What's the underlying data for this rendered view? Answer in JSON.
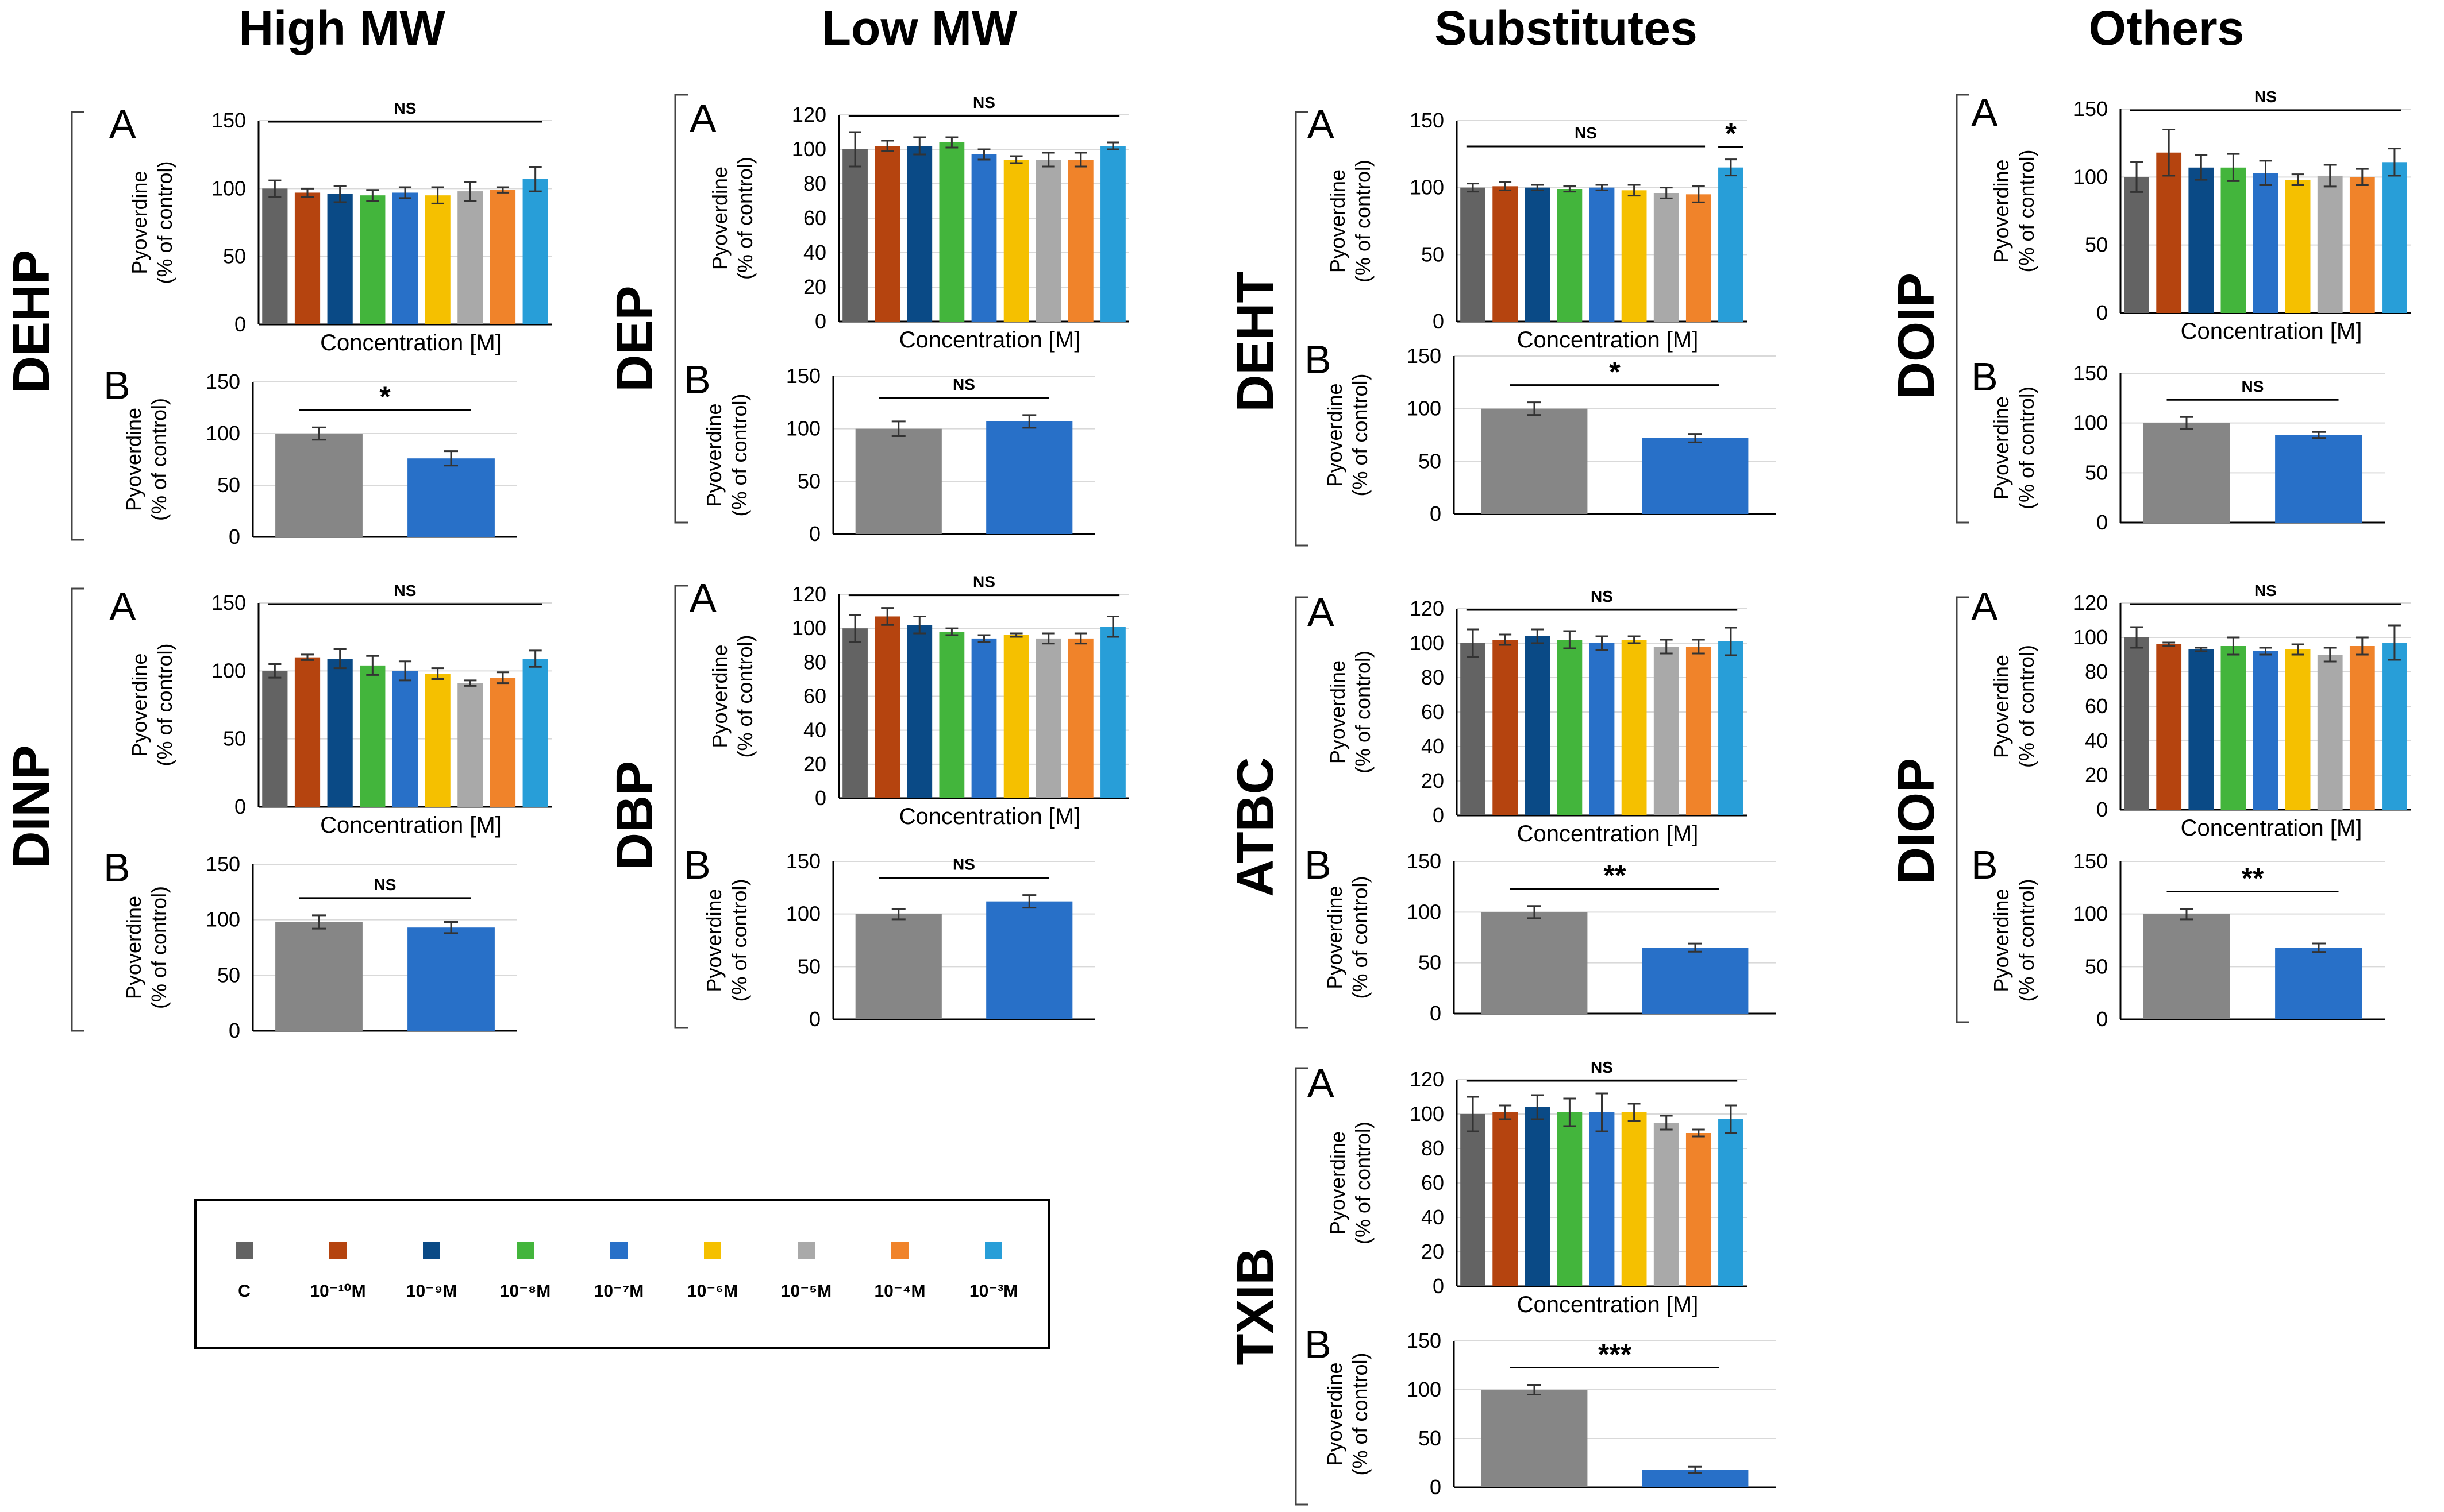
{
  "figure": {
    "axis": {
      "ylabel_line1": "Pyoverdine",
      "ylabel_line2": "(% of control)",
      "xlabel": "Concentration [M]"
    },
    "legend": {
      "items": [
        {
          "label": "C",
          "color": "#636363"
        },
        {
          "label": "10⁻¹⁰M",
          "color": "#b5440f"
        },
        {
          "label": "10⁻⁹M",
          "color": "#0a4a86"
        },
        {
          "label": "10⁻⁸M",
          "color": "#43b53c"
        },
        {
          "label": "10⁻⁷M",
          "color": "#2870c8"
        },
        {
          "label": "10⁻⁶M",
          "color": "#f5c000"
        },
        {
          "label": "10⁻⁵M",
          "color": "#a9a9a9"
        },
        {
          "label": "10⁻⁴M",
          "color": "#f0832a"
        },
        {
          "label": "10⁻³M",
          "color": "#289ed8"
        }
      ]
    },
    "panelB_colors": {
      "control": "#868686",
      "treated": "#2870c8"
    }
  },
  "chart_data": [
    {
      "compound": "DEHP",
      "group": "High MW",
      "panels": [
        {
          "label": "A",
          "type": "bar",
          "ylim": [
            0,
            150
          ],
          "ticks": [
            0,
            50,
            100,
            150
          ],
          "xlabel": "Concentration [M]",
          "values": [
            100,
            97,
            96,
            95,
            97,
            95,
            98,
            99,
            107
          ],
          "errors": [
            6,
            3,
            6,
            4,
            4,
            6,
            7,
            2,
            9
          ],
          "sig": [
            {
              "text": "NS",
              "from": 0,
              "to": 8
            }
          ]
        },
        {
          "label": "B",
          "type": "bar",
          "ylim": [
            0,
            150
          ],
          "ticks": [
            0,
            50,
            100,
            150
          ],
          "values": [
            100,
            76
          ],
          "errors": [
            6,
            7
          ],
          "sig": [
            {
              "text": "*",
              "from": 0,
              "to": 1
            }
          ]
        }
      ]
    },
    {
      "compound": "DINP",
      "group": "High MW",
      "panels": [
        {
          "label": "A",
          "type": "bar",
          "ylim": [
            0,
            150
          ],
          "ticks": [
            0,
            50,
            100,
            150
          ],
          "xlabel": "Concentration [M]",
          "values": [
            100,
            110,
            109,
            104,
            100,
            98,
            91,
            95,
            109
          ],
          "errors": [
            5,
            2,
            7,
            7,
            7,
            4,
            2,
            4,
            6
          ],
          "sig": [
            {
              "text": "NS",
              "from": 0,
              "to": 8
            }
          ]
        },
        {
          "label": "B",
          "type": "bar",
          "ylim": [
            0,
            150
          ],
          "ticks": [
            0,
            50,
            100,
            150
          ],
          "values": [
            98,
            93
          ],
          "errors": [
            6,
            5
          ],
          "sig": [
            {
              "text": "NS",
              "from": 0,
              "to": 1
            }
          ]
        }
      ]
    },
    {
      "compound": "DEP",
      "group": "Low MW",
      "panels": [
        {
          "label": "A",
          "type": "bar",
          "ylim": [
            0,
            120
          ],
          "ticks": [
            0,
            20,
            40,
            60,
            80,
            100,
            120
          ],
          "xlabel": "Concentration [M]",
          "values": [
            100,
            102,
            102,
            104,
            97,
            94,
            94,
            94,
            102
          ],
          "errors": [
            10,
            3,
            5,
            3,
            3,
            2,
            4,
            4,
            2
          ],
          "sig": [
            {
              "text": "NS",
              "from": 0,
              "to": 8
            }
          ]
        },
        {
          "label": "B",
          "type": "bar",
          "ylim": [
            0,
            150
          ],
          "ticks": [
            0,
            50,
            100,
            150
          ],
          "values": [
            100,
            107
          ],
          "errors": [
            7,
            6
          ],
          "sig": [
            {
              "text": "NS",
              "from": 0,
              "to": 1
            }
          ]
        }
      ]
    },
    {
      "compound": "DBP",
      "group": "Low MW",
      "panels": [
        {
          "label": "A",
          "type": "bar",
          "ylim": [
            0,
            120
          ],
          "ticks": [
            0,
            20,
            40,
            60,
            80,
            100,
            120
          ],
          "xlabel": "Concentration [M]",
          "values": [
            100,
            107,
            102,
            98,
            94,
            96,
            94,
            94,
            101
          ],
          "errors": [
            8,
            5,
            5,
            2,
            2,
            1,
            3,
            3,
            6
          ],
          "sig": [
            {
              "text": "NS",
              "from": 0,
              "to": 8
            }
          ]
        },
        {
          "label": "B",
          "type": "bar",
          "ylim": [
            0,
            150
          ],
          "ticks": [
            0,
            50,
            100,
            150
          ],
          "values": [
            100,
            112
          ],
          "errors": [
            5,
            6
          ],
          "sig": [
            {
              "text": "NS",
              "from": 0,
              "to": 1
            }
          ]
        }
      ]
    },
    {
      "compound": "DEHT",
      "group": "Substitutes",
      "panels": [
        {
          "label": "A",
          "type": "bar",
          "ylim": [
            0,
            150
          ],
          "ticks": [
            0,
            50,
            100,
            150
          ],
          "xlabel": "Concentration [M]",
          "values": [
            100,
            101,
            100,
            99,
            100,
            98,
            96,
            95,
            115
          ],
          "errors": [
            3,
            3,
            2,
            2,
            2,
            4,
            4,
            6,
            6
          ],
          "sig": [
            {
              "text": "NS",
              "from": 0,
              "to": 7
            },
            {
              "text": "*",
              "from": 8,
              "to": 8
            }
          ]
        },
        {
          "label": "B",
          "type": "bar",
          "ylim": [
            0,
            150
          ],
          "ticks": [
            0,
            50,
            100,
            150
          ],
          "values": [
            100,
            72
          ],
          "errors": [
            6,
            4
          ],
          "sig": [
            {
              "text": "*",
              "from": 0,
              "to": 1
            }
          ]
        }
      ]
    },
    {
      "compound": "ATBC",
      "group": "Substitutes",
      "panels": [
        {
          "label": "A",
          "type": "bar",
          "ylim": [
            0,
            120
          ],
          "ticks": [
            0,
            20,
            40,
            60,
            80,
            100,
            120
          ],
          "xlabel": "Concentration [M]",
          "values": [
            100,
            102,
            104,
            102,
            100,
            102,
            98,
            98,
            101
          ],
          "errors": [
            8,
            3,
            4,
            5,
            4,
            2,
            4,
            4,
            8
          ],
          "sig": [
            {
              "text": "NS",
              "from": 0,
              "to": 8
            }
          ]
        },
        {
          "label": "B",
          "type": "bar",
          "ylim": [
            0,
            150
          ],
          "ticks": [
            0,
            50,
            100,
            150
          ],
          "values": [
            100,
            65
          ],
          "errors": [
            6,
            4
          ],
          "sig": [
            {
              "text": "**",
              "from": 0,
              "to": 1
            }
          ]
        }
      ]
    },
    {
      "compound": "TXIB",
      "group": "Substitutes",
      "panels": [
        {
          "label": "A",
          "type": "bar",
          "ylim": [
            0,
            120
          ],
          "ticks": [
            0,
            20,
            40,
            60,
            80,
            100,
            120
          ],
          "xlabel": "Concentration [M]",
          "values": [
            100,
            101,
            104,
            101,
            101,
            101,
            95,
            89,
            97
          ],
          "errors": [
            10,
            4,
            7,
            8,
            11,
            5,
            4,
            2,
            8
          ],
          "sig": [
            {
              "text": "NS",
              "from": 0,
              "to": 8
            }
          ]
        },
        {
          "label": "B",
          "type": "bar",
          "ylim": [
            0,
            150
          ],
          "ticks": [
            0,
            50,
            100,
            150
          ],
          "values": [
            100,
            18
          ],
          "errors": [
            5,
            3
          ],
          "sig": [
            {
              "text": "***",
              "from": 0,
              "to": 1
            }
          ]
        }
      ]
    },
    {
      "compound": "DOIP",
      "group": "Others",
      "panels": [
        {
          "label": "A",
          "type": "bar",
          "ylim": [
            0,
            150
          ],
          "ticks": [
            0,
            50,
            100,
            150
          ],
          "xlabel": "Concentration [M]",
          "values": [
            100,
            118,
            107,
            107,
            103,
            98,
            101,
            100,
            111
          ],
          "errors": [
            11,
            17,
            9,
            10,
            9,
            4,
            8,
            6,
            10
          ],
          "sig": [
            {
              "text": "NS",
              "from": 0,
              "to": 8
            }
          ]
        },
        {
          "label": "B",
          "type": "bar",
          "ylim": [
            0,
            150
          ],
          "ticks": [
            0,
            50,
            100,
            150
          ],
          "values": [
            100,
            88
          ],
          "errors": [
            6,
            3
          ],
          "sig": [
            {
              "text": "NS",
              "from": 0,
              "to": 1
            }
          ]
        }
      ]
    },
    {
      "compound": "DIOP",
      "group": "Others",
      "panels": [
        {
          "label": "A",
          "type": "bar",
          "ylim": [
            0,
            120
          ],
          "ticks": [
            0,
            20,
            40,
            60,
            80,
            100,
            120
          ],
          "xlabel": "Concentration [M]",
          "values": [
            100,
            96,
            93,
            95,
            92,
            93,
            90,
            95,
            97
          ],
          "errors": [
            6,
            1,
            1,
            5,
            2,
            3,
            4,
            5,
            10
          ],
          "sig": [
            {
              "text": "NS",
              "from": 0,
              "to": 8
            }
          ]
        },
        {
          "label": "B",
          "type": "bar",
          "ylim": [
            0,
            150
          ],
          "ticks": [
            0,
            50,
            100,
            150
          ],
          "values": [
            100,
            68
          ],
          "errors": [
            5,
            4
          ],
          "sig": [
            {
              "text": "**",
              "from": 0,
              "to": 1
            }
          ]
        }
      ]
    }
  ]
}
